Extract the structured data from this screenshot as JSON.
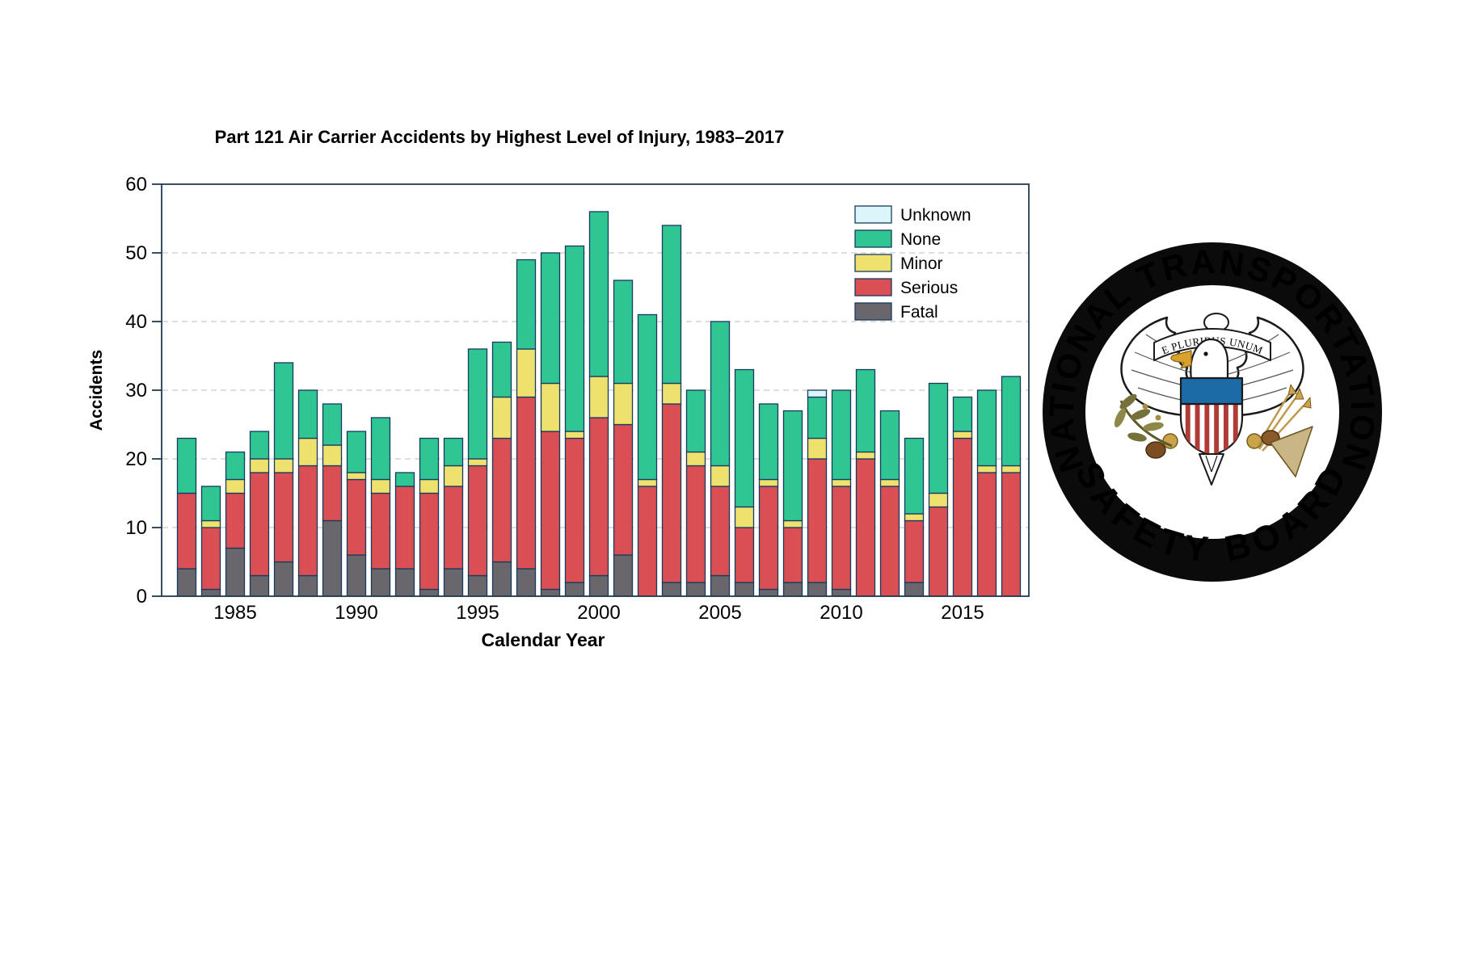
{
  "chart_data": {
    "type": "bar",
    "stacked": true,
    "title": "Part 121 Air Carrier Accidents by Highest Level of Injury, 1983–2017",
    "xlabel": "Calendar Year",
    "ylabel": "Accidents",
    "ylim": [
      0,
      60
    ],
    "yticks": [
      0,
      10,
      20,
      30,
      40,
      50,
      60
    ],
    "xtick_years": [
      1985,
      1990,
      1995,
      2000,
      2005,
      2010,
      2015
    ],
    "grid": "horizontal-dashed",
    "legend_position": "top-right-inside",
    "legend_order": [
      "Unknown",
      "None",
      "Minor",
      "Serious",
      "Fatal"
    ],
    "years": [
      1983,
      1984,
      1985,
      1986,
      1987,
      1988,
      1989,
      1990,
      1991,
      1992,
      1993,
      1994,
      1995,
      1996,
      1997,
      1998,
      1999,
      2000,
      2001,
      2002,
      2003,
      2004,
      2005,
      2006,
      2007,
      2008,
      2009,
      2010,
      2011,
      2012,
      2013,
      2014,
      2015,
      2016,
      2017
    ],
    "series": [
      {
        "name": "Fatal",
        "color": "#69676c",
        "values": [
          4,
          1,
          7,
          3,
          5,
          3,
          11,
          6,
          4,
          4,
          1,
          4,
          3,
          5,
          4,
          1,
          2,
          3,
          6,
          0,
          2,
          2,
          3,
          2,
          1,
          2,
          2,
          1,
          0,
          0,
          2,
          0,
          0,
          0,
          0
        ]
      },
      {
        "name": "Serious",
        "color": "#d94f53",
        "values": [
          11,
          9,
          8,
          15,
          13,
          16,
          8,
          11,
          11,
          12,
          14,
          12,
          16,
          18,
          25,
          23,
          21,
          23,
          19,
          16,
          26,
          17,
          13,
          8,
          15,
          8,
          18,
          15,
          20,
          16,
          9,
          13,
          23,
          18,
          18
        ]
      },
      {
        "name": "Minor",
        "color": "#efe16e",
        "values": [
          0,
          1,
          2,
          2,
          2,
          4,
          3,
          1,
          2,
          0,
          2,
          3,
          1,
          6,
          7,
          7,
          1,
          6,
          6,
          1,
          3,
          2,
          3,
          3,
          1,
          1,
          3,
          1,
          1,
          1,
          1,
          2,
          1,
          1,
          1
        ]
      },
      {
        "name": "None",
        "color": "#2fc694",
        "values": [
          8,
          5,
          4,
          4,
          14,
          7,
          6,
          6,
          9,
          2,
          6,
          4,
          16,
          8,
          13,
          19,
          27,
          24,
          15,
          24,
          23,
          9,
          21,
          20,
          11,
          16,
          6,
          13,
          12,
          10,
          11,
          16,
          5,
          11,
          13
        ]
      },
      {
        "name": "Unknown",
        "color": "#dbf6fa",
        "values": [
          0,
          0,
          0,
          0,
          0,
          0,
          0,
          0,
          0,
          0,
          0,
          0,
          0,
          0,
          0,
          0,
          0,
          0,
          0,
          0,
          0,
          0,
          0,
          0,
          0,
          0,
          1,
          0,
          0,
          0,
          0,
          0,
          0,
          0,
          0
        ]
      }
    ],
    "totals": [
      23,
      16,
      21,
      24,
      34,
      30,
      28,
      24,
      26,
      18,
      23,
      23,
      36,
      37,
      49,
      50,
      51,
      56,
      46,
      41,
      54,
      30,
      40,
      33,
      28,
      27,
      30,
      30,
      33,
      27,
      23,
      31,
      29,
      30,
      32
    ]
  },
  "logo": {
    "ring_text_top": "NATIONAL TRANSPORTATION",
    "ring_text_bottom": "SAFETY BOARD",
    "banner_text": "E PLURIBUS UNUM",
    "ring_color": "#0b0b0b",
    "shield_blue": "#1d6ba6",
    "stripe_red": "#b03a36"
  },
  "style": {
    "frame_color": "#223a50",
    "bar_stroke": "#173a5e",
    "grid_color": "#c9c9c9",
    "tick_font": 24,
    "legend_font": 21
  }
}
